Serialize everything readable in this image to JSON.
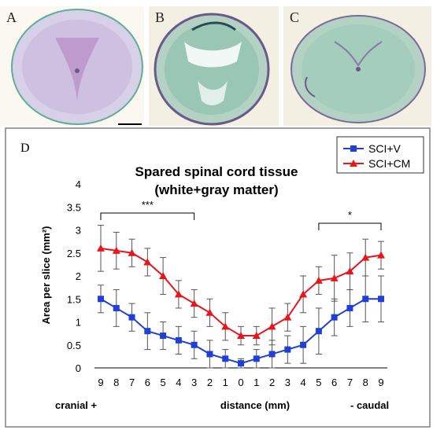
{
  "panels": {
    "a": {
      "label": "A"
    },
    "b": {
      "label": "B"
    },
    "c": {
      "label": "C"
    },
    "d": {
      "label": "D"
    }
  },
  "colors": {
    "scibv": "#1f3fd6",
    "scicm": "#e8151b",
    "tissue_green": "#5fae96",
    "tissue_purple": "#b98cc4",
    "background_photo": "#f4efe3"
  },
  "chart_data": {
    "type": "line",
    "title_line1": "Spared spinal cord tissue",
    "title_line2": "(white+gray matter)",
    "ylabel": "Area per slice (mm²)",
    "ylim": [
      0,
      4
    ],
    "yticks": [
      "0",
      "0.5",
      "1",
      "1.5",
      "2",
      "2.5",
      "3",
      "3.5",
      "4"
    ],
    "x": [
      "9",
      "8",
      "7",
      "6",
      "5",
      "4",
      "3",
      "2",
      "1",
      "0",
      "1",
      "2",
      "3",
      "4",
      "5",
      "6",
      "7",
      "8",
      "9"
    ],
    "xlabel_left": "cranial  +",
    "xlabel_center": "distance (mm)",
    "xlabel_right": "- caudal",
    "series": [
      {
        "name": "SCI+V",
        "color": "#1f3fd6",
        "marker": "square",
        "values": [
          1.5,
          1.3,
          1.1,
          0.8,
          0.7,
          0.6,
          0.5,
          0.3,
          0.2,
          0.1,
          0.2,
          0.3,
          0.4,
          0.5,
          0.8,
          1.1,
          1.3,
          1.5,
          1.5
        ],
        "errors": [
          0.3,
          0.4,
          0.3,
          0.4,
          0.3,
          0.3,
          0.3,
          0.3,
          0.2,
          0.1,
          0.2,
          0.3,
          0.3,
          0.4,
          0.5,
          0.4,
          0.4,
          0.5,
          0.5
        ]
      },
      {
        "name": "SCI+CM",
        "color": "#e8151b",
        "marker": "triangle",
        "values": [
          2.6,
          2.55,
          2.5,
          2.3,
          2.0,
          1.6,
          1.4,
          1.2,
          0.9,
          0.7,
          0.7,
          0.9,
          1.1,
          1.6,
          1.9,
          1.95,
          2.1,
          2.4,
          2.45
        ],
        "errors": [
          0.5,
          0.4,
          0.3,
          0.3,
          0.4,
          0.3,
          0.3,
          0.3,
          0.3,
          0.2,
          0.2,
          0.4,
          0.3,
          0.4,
          0.3,
          0.5,
          0.4,
          0.4,
          0.3
        ]
      }
    ],
    "significance": [
      {
        "text": "***",
        "from_index": 0,
        "to_index": 6
      },
      {
        "text": "*",
        "from_index": 14,
        "to_index": 18
      }
    ],
    "legend": "top-right",
    "grid": false
  }
}
